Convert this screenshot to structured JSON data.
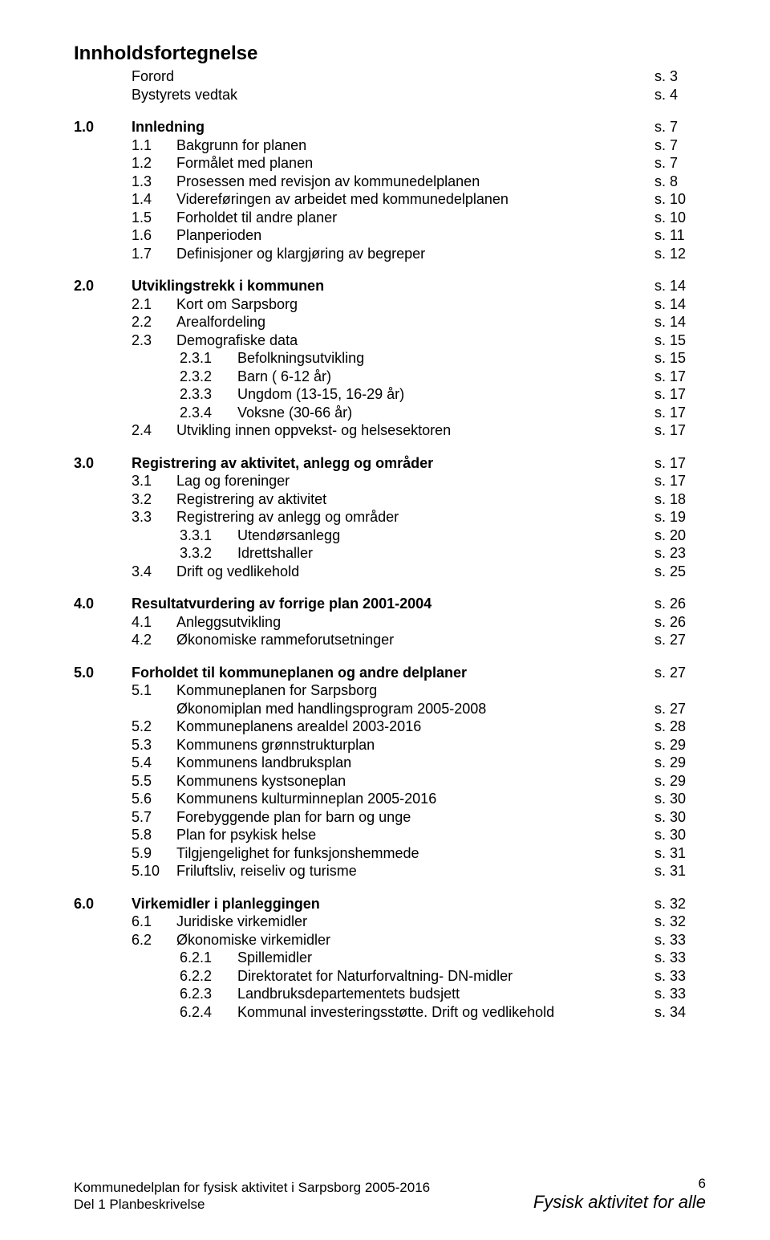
{
  "title": "Innholdsfortegnelse",
  "front": [
    {
      "label": "Forord",
      "page": "s.   3"
    },
    {
      "label": "Bystyrets vedtak",
      "page": "s.   4"
    }
  ],
  "sections": [
    {
      "num": "1.0",
      "label": "Innledning",
      "page": "s.   7",
      "bold": true,
      "items": [
        {
          "num": "1.1",
          "label": "Bakgrunn for planen",
          "page": "s.   7"
        },
        {
          "num": "1.2",
          "label": "Formålet med planen",
          "page": "s.   7"
        },
        {
          "num": "1.3",
          "label": "Prosessen med revisjon av kommunedelplanen",
          "page": "s.   8"
        },
        {
          "num": "1.4",
          "label": "Videreføringen av arbeidet med kommunedelplanen",
          "page": "s. 10"
        },
        {
          "num": "1.5",
          "label": "Forholdet til andre planer",
          "page": "s. 10"
        },
        {
          "num": "1.6",
          "label": "Planperioden",
          "page": "s. 11"
        },
        {
          "num": "1.7",
          "label": "Definisjoner og klargjøring av begreper",
          "page": "s. 12"
        }
      ]
    },
    {
      "num": "2.0",
      "label": "Utviklingstrekk i kommunen",
      "page": "s. 14",
      "bold": true,
      "items": [
        {
          "num": "2.1",
          "label": "Kort om Sarpsborg",
          "page": "s. 14"
        },
        {
          "num": "2.2",
          "label": "Arealfordeling",
          "page": "s. 14"
        },
        {
          "num": "2.3",
          "label": "Demografiske data",
          "page": "s. 15",
          "sub": [
            {
              "num": "2.3.1",
              "label": "Befolkningsutvikling",
              "page": "s. 15"
            },
            {
              "num": "2.3.2",
              "label": "Barn       (  6-12 år)",
              "page": "s. 17"
            },
            {
              "num": "2.3.3",
              "label": "Ungdom (13-15, 16-29 år)",
              "page": "s. 17"
            },
            {
              "num": "2.3.4",
              "label": "Voksne  (30-66 år)",
              "page": "s. 17"
            }
          ]
        },
        {
          "num": "2.4",
          "label": "Utvikling innen oppvekst- og helsesektoren",
          "page": "s. 17"
        }
      ]
    },
    {
      "num": "3.0",
      "label": "Registrering av aktivitet, anlegg og områder",
      "page": "s. 17",
      "bold": true,
      "items": [
        {
          "num": "3.1",
          "label": "Lag og foreninger",
          "page": "s. 17"
        },
        {
          "num": "3.2",
          "label": "Registrering av aktivitet",
          "page": "s. 18"
        },
        {
          "num": "3.3",
          "label": "Registrering av anlegg og områder",
          "page": "s. 19",
          "sub": [
            {
              "num": "3.3.1",
              "label": "Utendørsanlegg",
              "page": "s. 20"
            },
            {
              "num": "3.3.2",
              "label": "Idrettshaller",
              "page": "s. 23"
            }
          ]
        },
        {
          "num": "3.4",
          "label": "Drift og vedlikehold",
          "page": "s. 25"
        }
      ]
    },
    {
      "num": "4.0",
      "label": "Resultatvurdering av forrige plan 2001-2004",
      "page": "s. 26",
      "bold": true,
      "items": [
        {
          "num": "4.1",
          "label": "Anleggsutvikling",
          "page": "s. 26"
        },
        {
          "num": "4.2",
          "label": "Økonomiske rammeforutsetninger",
          "page": "s. 27"
        }
      ]
    },
    {
      "num": "5.0",
      "label": "Forholdet til kommuneplanen og andre delplaner",
      "page": "s. 27",
      "bold": true,
      "items": [
        {
          "num": "5.1",
          "label": "Kommuneplanen for Sarpsborg",
          "page": "",
          "sub": [
            {
              "num": "",
              "label": "Økonomiplan med handlingsprogram 2005-2008",
              "page": "s. 27",
              "noindent": true
            }
          ]
        },
        {
          "num": "5.2",
          "label": "Kommuneplanens arealdel 2003-2016",
          "page": "s. 28"
        },
        {
          "num": "5.3",
          "label": "Kommunens grønnstrukturplan",
          "page": "s. 29"
        },
        {
          "num": "5.4",
          "label": "Kommunens landbruksplan",
          "page": "s. 29"
        },
        {
          "num": "5.5",
          "label": "Kommunens kystsoneplan",
          "page": "s. 29"
        },
        {
          "num": "5.6",
          "label": "Kommunens kulturminneplan 2005-2016",
          "page": "s. 30"
        },
        {
          "num": "5.7",
          "label": "Forebyggende plan for barn og unge",
          "page": "s. 30"
        },
        {
          "num": "5.8",
          "label": "Plan for psykisk helse",
          "page": "s. 30"
        },
        {
          "num": "5.9",
          "label": "Tilgjengelighet for funksjonshemmede",
          "page": "s. 31"
        },
        {
          "num": "5.10",
          "label": "Friluftsliv, reiseliv og turisme",
          "page": "s. 31"
        }
      ]
    },
    {
      "num": "6.0",
      "label": "Virkemidler i planleggingen",
      "page": "s. 32",
      "bold": true,
      "items": [
        {
          "num": "6.1",
          "label": "Juridiske virkemidler",
          "page": "s. 32"
        },
        {
          "num": "6.2",
          "label": "Økonomiske virkemidler",
          "page": "s. 33",
          "sub": [
            {
              "num": "6.2.1",
              "label": "Spillemidler",
              "page": "s. 33"
            },
            {
              "num": "6.2.2",
              "label": "Direktoratet for Naturforvaltning- DN-midler",
              "page": "s. 33"
            },
            {
              "num": "6.2.3",
              "label": "Landbruksdepartementets budsjett",
              "page": "s. 33"
            },
            {
              "num": "6.2.4",
              "label": "Kommunal investeringsstøtte. Drift og vedlikehold",
              "page": "s. 34"
            }
          ]
        }
      ]
    }
  ],
  "footer": {
    "line1": "Kommunedelplan for fysisk aktivitet i Sarpsborg 2005-2016",
    "line2": "Del 1 Planbeskrivelse",
    "page": "6",
    "tagline": "Fysisk aktivitet for alle"
  }
}
